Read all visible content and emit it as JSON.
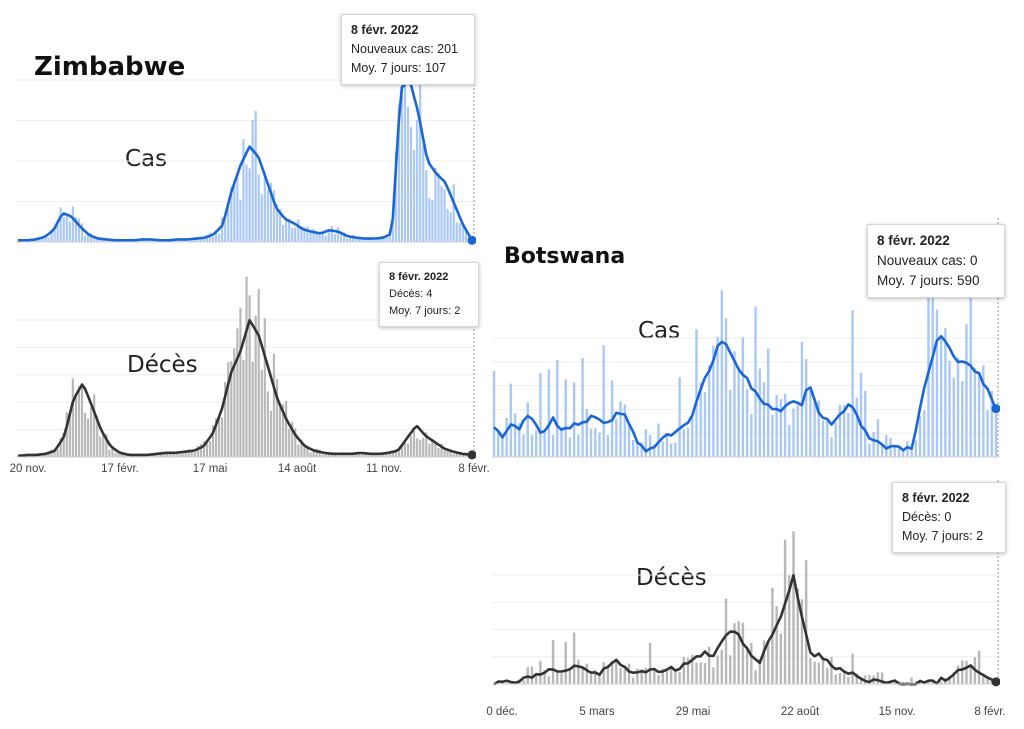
{
  "zimbabwe": {
    "name": "Zimbabwe",
    "cases_label": "Cas",
    "deaths_label": "Décès",
    "cases_tooltip": {
      "date": "8 févr. 2022",
      "l1": "Nouveaux cas: 201",
      "l2": "Moy. 7 jours: 107"
    },
    "deaths_tooltip": {
      "date": "8 févr. 2022",
      "l1": "Décès: 4",
      "l2": "Moy. 7 jours: 2"
    },
    "x_ticks": [
      "20 nov.",
      "17 févr.",
      "17 mai",
      "14 août",
      "11 nov.",
      "8 févr."
    ]
  },
  "botswana": {
    "name": "Botswana",
    "cases_label": "Cas",
    "deaths_label": "Décès",
    "cases_tooltip": {
      "date": "8 févr. 2022",
      "l1": "Nouveaux cas: 0",
      "l2": "Moy. 7 jours: 590"
    },
    "deaths_tooltip": {
      "date": "8 févr. 2022",
      "l1": "Décès: 0",
      "l2": "Moy. 7 jours: 2"
    },
    "x_ticks": [
      "0 déc.",
      "5 mars",
      "29 mai",
      "22 août",
      "15 nov.",
      "8 févr."
    ]
  },
  "colors": {
    "cases_line": "#1a66d6",
    "cases_bar": "#a9c8f5",
    "deaths_line": "#333333",
    "deaths_bar": "#b8b8b8"
  },
  "chart_data": [
    {
      "type": "area",
      "title": "",
      "xlabel": "",
      "ylabel": "",
      "series": [
        {
          "name": "Cas",
          "values": [
            2,
            2,
            3,
            6,
            14,
            34,
            30,
            18,
            8,
            4,
            3,
            2,
            2,
            2,
            3,
            3,
            2,
            2,
            3,
            3,
            4,
            5,
            9,
            20,
            60,
            90,
            112,
            100,
            70,
            40,
            27,
            22,
            15,
            12,
            10,
            14,
            12,
            7,
            5,
            4,
            4,
            5,
            10,
            180,
            190,
            150,
            95,
            80,
            70,
            45,
            20,
            2
          ]
        }
      ],
      "x_range": [
        "2020-11-20",
        "2022-02-08"
      ]
    },
    {
      "type": "area",
      "title": "",
      "xlabel": "",
      "ylabel": "",
      "series": [
        {
          "name": "Décès",
          "values": [
            1,
            2,
            2,
            3,
            6,
            20,
            55,
            70,
            48,
            25,
            10,
            4,
            2,
            2,
            2,
            3,
            4,
            4,
            5,
            6,
            10,
            22,
            45,
            80,
            100,
            130,
            115,
            85,
            55,
            35,
            20,
            10,
            6,
            4,
            3,
            3,
            3,
            4,
            3,
            3,
            4,
            6,
            18,
            30,
            20,
            14,
            8,
            5,
            3,
            2
          ]
        }
      ],
      "x_range": [
        "2020-11-20",
        "2022-02-08"
      ]
    },
    {
      "type": "area",
      "title": "",
      "xlabel": "",
      "ylabel": "",
      "series": [
        {
          "name": "Cas",
          "values": [
            80,
            60,
            90,
            75,
            110,
            85,
            60,
            100,
            70,
            75,
            90,
            100,
            110,
            90,
            105,
            120,
            80,
            40,
            20,
            30,
            50,
            60,
            70,
            100,
            160,
            220,
            280,
            320,
            260,
            220,
            200,
            170,
            140,
            125,
            120,
            160,
            130,
            210,
            120,
            100,
            90,
            120,
            150,
            90,
            60,
            40,
            20,
            20,
            20,
            20,
            120,
            220,
            310,
            320,
            270,
            260,
            240,
            220,
            190,
            130
          ]
        }
      ],
      "x_range": [
        "2020-12-30",
        "2022-02-08"
      ]
    },
    {
      "type": "area",
      "title": "",
      "xlabel": "",
      "ylabel": "",
      "series": [
        {
          "name": "Décès",
          "values": [
            0,
            1,
            2,
            3,
            5,
            8,
            12,
            14,
            12,
            18,
            16,
            10,
            10,
            18,
            22,
            14,
            10,
            12,
            12,
            10,
            14,
            15,
            20,
            24,
            28,
            26,
            40,
            48,
            42,
            30,
            18,
            35,
            50,
            72,
            100,
            60,
            28,
            26,
            20,
            14,
            10,
            8,
            4,
            4,
            4,
            2,
            2,
            2,
            2,
            1,
            2,
            4,
            8,
            14,
            18,
            10,
            6,
            2
          ]
        }
      ],
      "x_range": [
        "2020-12-30",
        "2022-02-08"
      ]
    }
  ]
}
